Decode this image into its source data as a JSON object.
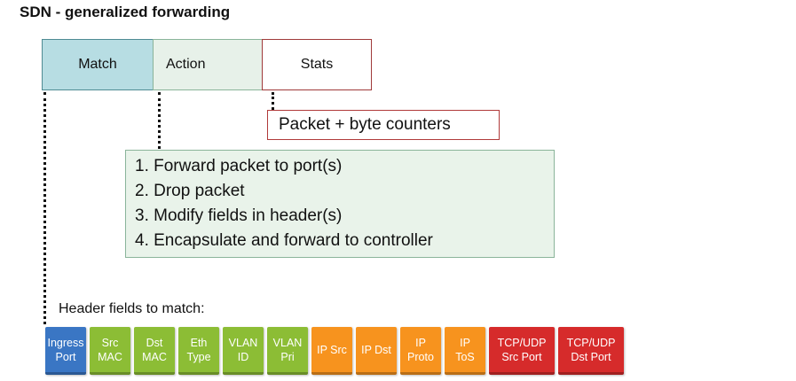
{
  "title": "SDN - generalized forwarding",
  "header_boxes": {
    "match": "Match",
    "action": "Action",
    "stats": "Stats"
  },
  "stats_box": "Packet + byte counters",
  "actions": [
    "1.  Forward packet to port(s)",
    "2.  Drop packet",
    "3.  Modify fields in header(s)",
    "4.  Encapsulate and forward to controller"
  ],
  "header_fields_label": "Header fields to match:",
  "fields": [
    {
      "lines": [
        "Ingress",
        "Port"
      ],
      "color": "#3a76c4"
    },
    {
      "lines": [
        "Src",
        "MAC"
      ],
      "color": "#8cbd35"
    },
    {
      "lines": [
        "Dst",
        "MAC"
      ],
      "color": "#8cbd35"
    },
    {
      "lines": [
        "Eth",
        "Type"
      ],
      "color": "#8cbd35"
    },
    {
      "lines": [
        "VLAN",
        "ID"
      ],
      "color": "#8cbd35"
    },
    {
      "lines": [
        "VLAN",
        "Pri"
      ],
      "color": "#8cbd35"
    },
    {
      "lines": [
        "IP Src"
      ],
      "color": "#f7931e"
    },
    {
      "lines": [
        "IP Dst"
      ],
      "color": "#f7931e"
    },
    {
      "lines": [
        "IP",
        "Proto"
      ],
      "color": "#f7931e"
    },
    {
      "lines": [
        "IP",
        "ToS"
      ],
      "color": "#f7931e"
    },
    {
      "lines": [
        "TCP/UDP",
        "Src Port"
      ],
      "color": "#d62b2b",
      "wide": true
    },
    {
      "lines": [
        "TCP/UDP",
        "Dst Port"
      ],
      "color": "#d62b2b",
      "wide": true
    }
  ]
}
